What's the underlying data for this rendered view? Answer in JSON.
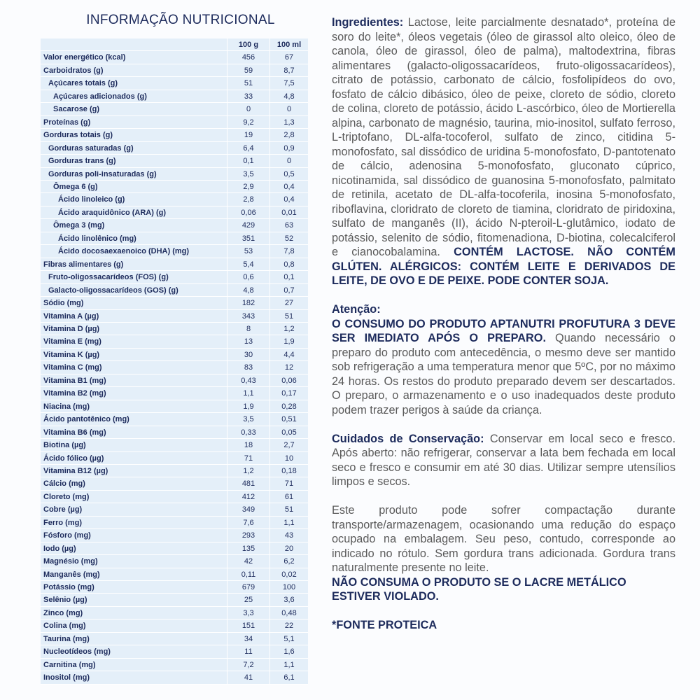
{
  "title": "INFORMAÇÃO NUTRICIONAL",
  "table": {
    "headers": [
      "",
      "100 g",
      "100 ml"
    ],
    "rows": [
      {
        "label": "Valor energético (kcal)",
        "level": 0,
        "g": "456",
        "ml": "67"
      },
      {
        "label": "Carboidratos (g)",
        "level": 0,
        "g": "59",
        "ml": "8,7"
      },
      {
        "label": "Açúcares totais (g)",
        "level": 1,
        "g": "51",
        "ml": "7,5"
      },
      {
        "label": "Açúcares adicionados (g)",
        "level": 2,
        "g": "33",
        "ml": "4,8"
      },
      {
        "label": "Sacarose (g)",
        "level": 2,
        "g": "0",
        "ml": "0"
      },
      {
        "label": "Proteínas (g)",
        "level": 0,
        "g": "9,2",
        "ml": "1,3"
      },
      {
        "label": "Gorduras totais (g)",
        "level": 0,
        "g": "19",
        "ml": "2,8"
      },
      {
        "label": "Gorduras saturadas (g)",
        "level": 1,
        "g": "6,4",
        "ml": "0,9"
      },
      {
        "label": "Gorduras trans (g)",
        "level": 1,
        "g": "0,1",
        "ml": "0"
      },
      {
        "label": "Gorduras poli-insaturadas (g)",
        "level": 1,
        "g": "3,5",
        "ml": "0,5"
      },
      {
        "label": "Ômega 6 (g)",
        "level": 2,
        "g": "2,9",
        "ml": "0,4"
      },
      {
        "label": "Ácido linoleico (g)",
        "level": 3,
        "g": "2,8",
        "ml": "0,4"
      },
      {
        "label": "Ácido araquidônico (ARA) (g)",
        "level": 3,
        "g": "0,06",
        "ml": "0,01"
      },
      {
        "label": "Ômega 3 (mg)",
        "level": 2,
        "g": "429",
        "ml": "63"
      },
      {
        "label": "Ácido linolênico (mg)",
        "level": 3,
        "g": "351",
        "ml": "52"
      },
      {
        "label": "Ácido docosaexaenoico (DHA) (mg)",
        "level": 3,
        "g": "53",
        "ml": "7,8"
      },
      {
        "label": "Fibras alimentares (g)",
        "level": 0,
        "g": "5,4",
        "ml": "0,8"
      },
      {
        "label": "Fruto-oligossacarídeos (FOS) (g)",
        "level": 1,
        "g": "0,6",
        "ml": "0,1"
      },
      {
        "label": "Galacto-oligossacarídeos (GOS) (g)",
        "level": 1,
        "g": "4,8",
        "ml": "0,7"
      },
      {
        "label": "Sódio (mg)",
        "level": 0,
        "g": "182",
        "ml": "27"
      },
      {
        "label": "Vitamina A (µg)",
        "level": 0,
        "g": "343",
        "ml": "51"
      },
      {
        "label": "Vitamina D (µg)",
        "level": 0,
        "g": "8",
        "ml": "1,2"
      },
      {
        "label": "Vitamina E (mg)",
        "level": 0,
        "g": "13",
        "ml": "1,9"
      },
      {
        "label": "Vitamina K (µg)",
        "level": 0,
        "g": "30",
        "ml": "4,4"
      },
      {
        "label": "Vitamina C (mg)",
        "level": 0,
        "g": "83",
        "ml": "12"
      },
      {
        "label": "Vitamina B1 (mg)",
        "level": 0,
        "g": "0,43",
        "ml": "0,06"
      },
      {
        "label": "Vitamina B2 (mg)",
        "level": 0,
        "g": "1,1",
        "ml": "0,17"
      },
      {
        "label": "Niacina (mg)",
        "level": 0,
        "g": "1,9",
        "ml": "0,28"
      },
      {
        "label": "Ácido pantotênico (mg)",
        "level": 0,
        "g": "3,5",
        "ml": "0,51"
      },
      {
        "label": "Vitamina B6 (mg)",
        "level": 0,
        "g": "0,33",
        "ml": "0,05"
      },
      {
        "label": "Biotina (µg)",
        "level": 0,
        "g": "18",
        "ml": "2,7"
      },
      {
        "label": "Ácido fólico (µg)",
        "level": 0,
        "g": "71",
        "ml": "10"
      },
      {
        "label": "Vitamina B12 (µg)",
        "level": 0,
        "g": "1,2",
        "ml": "0,18"
      },
      {
        "label": "Cálcio (mg)",
        "level": 0,
        "g": "481",
        "ml": "71"
      },
      {
        "label": "Cloreto (mg)",
        "level": 0,
        "g": "412",
        "ml": "61"
      },
      {
        "label": "Cobre (µg)",
        "level": 0,
        "g": "349",
        "ml": "51"
      },
      {
        "label": "Ferro (mg)",
        "level": 0,
        "g": "7,6",
        "ml": "1,1"
      },
      {
        "label": "Fósforo (mg)",
        "level": 0,
        "g": "293",
        "ml": "43"
      },
      {
        "label": "Iodo (µg)",
        "level": 0,
        "g": "135",
        "ml": "20"
      },
      {
        "label": "Magnésio (mg)",
        "level": 0,
        "g": "42",
        "ml": "6,2"
      },
      {
        "label": "Manganês (mg)",
        "level": 0,
        "g": "0,11",
        "ml": "0,02"
      },
      {
        "label": "Potássio (mg)",
        "level": 0,
        "g": "679",
        "ml": "100"
      },
      {
        "label": "Selênio (µg)",
        "level": 0,
        "g": "25",
        "ml": "3,6"
      },
      {
        "label": "Zinco (mg)",
        "level": 0,
        "g": "3,3",
        "ml": "0,48"
      },
      {
        "label": "Colina (mg)",
        "level": 0,
        "g": "151",
        "ml": "22"
      },
      {
        "label": "Taurina (mg)",
        "level": 0,
        "g": "34",
        "ml": "5,1"
      },
      {
        "label": "Nucleotídeos (mg)",
        "level": 0,
        "g": "11",
        "ml": "1,6"
      },
      {
        "label": "Carnitina (mg)",
        "level": 0,
        "g": "7,2",
        "ml": "1,1"
      },
      {
        "label": "Inositol (mg)",
        "level": 0,
        "g": "41",
        "ml": "6,1"
      }
    ]
  },
  "paragraphs": [
    [
      {
        "text": "Ingredientes:",
        "bold": true
      },
      {
        "text": " Lactose, leite parcialmente desnatado*, proteína de soro do leite*, óleos vegetais (óleo de girassol alto oleico, óleo de canola, óleo de girassol, óleo de palma), maltodextrina, fibras alimentares (galacto-oligossacarídeos, fruto-oligossacarídeos), citrato de potássio, carbonato de cálcio, fosfolipídeos do ovo, fosfato de cálcio dibásico, óleo de peixe, cloreto de sódio, cloreto de colina, cloreto de potássio, ácido L-ascórbico, óleo de Mortierella alpina, carbonato de magnésio, taurina, mio-inositol, sulfato ferroso, L-triptofano, DL-alfa-tocoferol, sulfato de zinco, citidina 5-monofosfato, sal dissódico de uridina 5-monofosfato, D-pantotenato de cálcio, adenosina 5-monofosfato, gluconato cúprico, nicotinamida, sal dissódico de guanosina 5-monofosfato, palmitato de retinila, acetato de DL-alfa-tocoferila, inosina 5-monofosfato, riboflavina, cloridrato de cloreto de tiamina, cloridrato de piridoxina, sulfato de manganês (II), ácido N-pteroil-L-glutâmico, iodato de potássio, selenito de sódio, fitomenadiona, D-biotina, colecalciferol e cianocobalamina. ",
        "bold": false
      },
      {
        "text": "CONTÉM LACTOSE. NÃO CONTÉM GLÚTEN. ALÉRGICOS: CONTÉM LEITE E DERIVADOS DE LEITE, DE OVO E DE PEIXE. PODE CONTER SOJA.",
        "bold": true
      }
    ],
    [
      {
        "text": "Atenção:",
        "bold": true,
        "block": true
      },
      {
        "text": "O CONSUMO DO PRODUTO APTANUTRI PROFUTURA 3 DEVE SER IMEDIATO APÓS O PREPARO.",
        "bold": true
      },
      {
        "text": " Quando necessário o preparo do produto com antecedência, o mesmo deve ser mantido sob refrigeração a uma temperatura menor que 5ºC, por no máximo 24 horas.  Os restos do produto preparado devem ser descartados. O preparo, o armazenamento e o uso inadequados deste produto podem trazer perigos à saúde da criança.",
        "bold": false
      }
    ],
    [
      {
        "text": "Cuidados de Conservação:",
        "bold": true
      },
      {
        "text": " Conservar em local seco e fresco. Após aberto: não refrigerar, conservar a lata bem fechada em local seco e fresco e consumir em até 30 dias. Utilizar sempre utensílios limpos e secos.",
        "bold": false
      }
    ],
    [
      {
        "text": "Este produto pode sofrer compactação durante transporte/armazenagem, ocasionando uma redução do espaço ocupado na embalagem. Seu peso, contudo, corresponde ao indicado no rótulo. Sem gordura trans adicionada. Gordura trans naturalmente presente no leite.",
        "bold": false,
        "block": true
      },
      {
        "text": "NÃO CONSUMA O PRODUTO SE O LACRE METÁLICO ESTIVER VIOLADO.",
        "bold": true,
        "block": true,
        "left": true
      }
    ],
    [
      {
        "text": "*FONTE PROTEICA",
        "bold": true
      }
    ]
  ]
}
